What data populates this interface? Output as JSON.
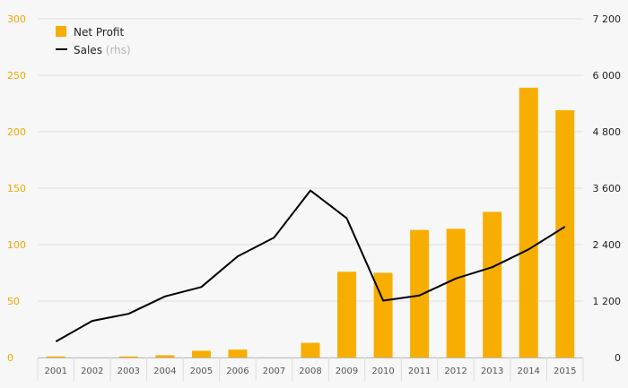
{
  "chart_data": {
    "type": "bar+line",
    "title": "",
    "categories": [
      "2001",
      "2002",
      "2003",
      "2004",
      "2005",
      "2006",
      "2007",
      "2008",
      "2009",
      "2010",
      "2011",
      "2012",
      "2013",
      "2014",
      "2015"
    ],
    "series": [
      {
        "name": "Net Profit",
        "type": "bar",
        "axis": "left",
        "color": "#f7ae00",
        "values": [
          1,
          0,
          1,
          2,
          6,
          7,
          0,
          13,
          76,
          75,
          113,
          114,
          129,
          239,
          219
        ]
      },
      {
        "name": "Sales",
        "name_note": "(rhs)",
        "type": "line",
        "axis": "right",
        "color": "#000000",
        "values": [
          340,
          780,
          930,
          1300,
          1500,
          2150,
          2550,
          3550,
          2960,
          1210,
          1320,
          1680,
          1920,
          2300,
          2780
        ]
      }
    ],
    "left_axis": {
      "min": 0,
      "max": 300,
      "ticks": [
        "0",
        "50",
        "100",
        "150",
        "200",
        "250",
        "300"
      ],
      "color": "#f0a800"
    },
    "right_axis": {
      "min": 0,
      "max": 7200,
      "ticks": [
        "0",
        "1 200",
        "2 400",
        "3 600",
        "4 800",
        "6 000",
        "7 200"
      ],
      "color": "#222222"
    },
    "grid": true,
    "legend_position": "top-left"
  }
}
